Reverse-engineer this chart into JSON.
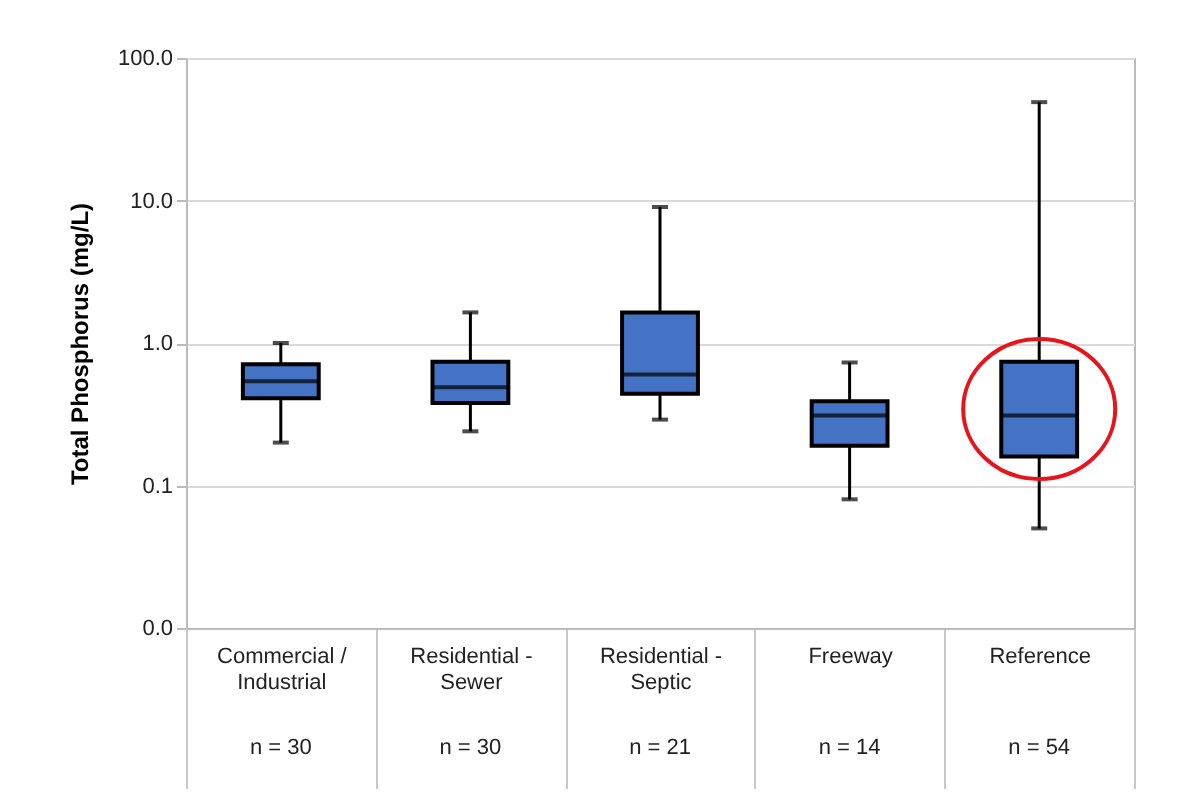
{
  "chart_data": {
    "type": "box",
    "ylabel": "Total Phosphorus (mg/L)",
    "categories": [
      "Commercial / Industrial",
      "Residential - Sewer",
      "Residential - Septic",
      "Freeway",
      "Reference"
    ],
    "boxes": [
      {
        "low": 0.2,
        "q1": 0.41,
        "median": 0.54,
        "q3": 0.71,
        "high": 1.0
      },
      {
        "low": 0.24,
        "q1": 0.38,
        "median": 0.49,
        "q3": 0.74,
        "high": 1.64
      },
      {
        "low": 0.29,
        "q1": 0.44,
        "median": 0.6,
        "q3": 1.64,
        "high": 9.0
      },
      {
        "low": 0.08,
        "q1": 0.19,
        "median": 0.31,
        "q3": 0.39,
        "high": 0.73
      },
      {
        "low": 0.05,
        "q1": 0.16,
        "median": 0.31,
        "q3": 0.74,
        "high": 49
      }
    ],
    "color": "#4472c4",
    "log": "y",
    "ylim": [
      0.01,
      100
    ],
    "yticks": [
      {
        "value": 0.01,
        "label": "0.0"
      },
      {
        "value": 0.1,
        "label": "0.1"
      },
      {
        "value": 1,
        "label": "1.0"
      },
      {
        "value": 10,
        "label": "10.0"
      },
      {
        "value": 100,
        "label": "100.0"
      }
    ],
    "grid": "y",
    "annotations": [
      "n = 30",
      "n = 30",
      "n = 21",
      "n = 14",
      "n = 54"
    ]
  }
}
